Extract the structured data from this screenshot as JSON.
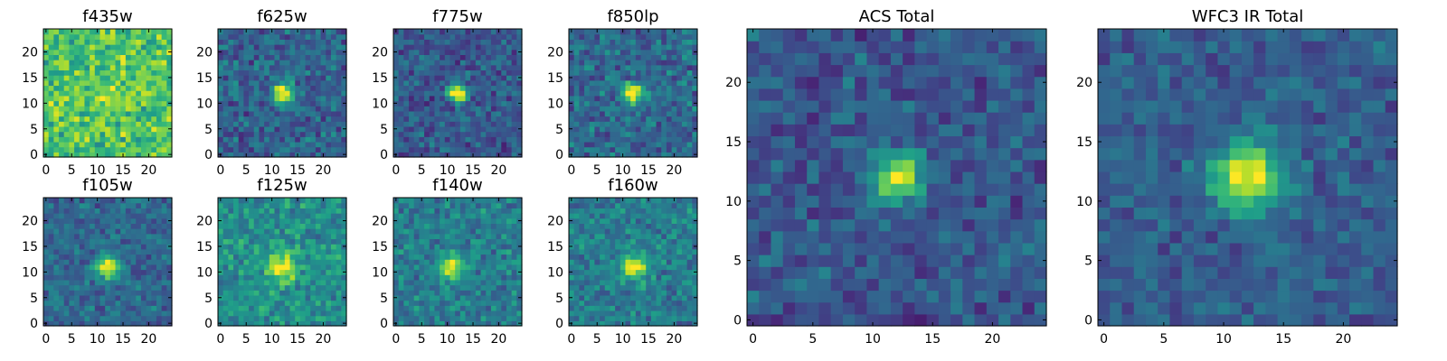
{
  "figure": {
    "colormap": "viridis",
    "colormap_stops": [
      "#440154",
      "#482878",
      "#3e4989",
      "#31688e",
      "#26828e",
      "#1f9e89",
      "#35b779",
      "#6ece58",
      "#b5de2b",
      "#fde725"
    ]
  },
  "chart_data": [
    {
      "type": "heatmap",
      "title": "f435w",
      "grid_size": 25,
      "background_level": 0.72,
      "noise": 0.17,
      "source_center": [
        12,
        11
      ],
      "source_amplitude": 0.15,
      "source_width": 1.5,
      "seed": 11,
      "xticks": [
        0,
        5,
        10,
        15,
        20
      ],
      "yticks": [
        0,
        5,
        10,
        15,
        20
      ],
      "xlim": [
        0,
        24
      ],
      "ylim": [
        0,
        24
      ]
    },
    {
      "type": "heatmap",
      "title": "f625w",
      "grid_size": 25,
      "background_level": 0.32,
      "noise": 0.14,
      "source_center": [
        12,
        12
      ],
      "source_amplitude": 0.75,
      "source_width": 1.3,
      "seed": 23,
      "xticks": [
        0,
        5,
        10,
        15,
        20
      ],
      "yticks": [
        0,
        5,
        10,
        15,
        20
      ],
      "xlim": [
        0,
        24
      ],
      "ylim": [
        0,
        24
      ]
    },
    {
      "type": "heatmap",
      "title": "f775w",
      "grid_size": 25,
      "background_level": 0.28,
      "noise": 0.13,
      "source_center": [
        12,
        12
      ],
      "source_amplitude": 0.78,
      "source_width": 1.3,
      "seed": 37,
      "xticks": [
        0,
        5,
        10,
        15,
        20
      ],
      "yticks": [
        0,
        5,
        10,
        15,
        20
      ],
      "xlim": [
        0,
        24
      ],
      "ylim": [
        0,
        24
      ]
    },
    {
      "type": "heatmap",
      "title": "f850lp",
      "grid_size": 25,
      "background_level": 0.34,
      "noise": 0.14,
      "source_center": [
        12,
        12
      ],
      "source_amplitude": 0.72,
      "source_width": 1.3,
      "seed": 41,
      "xticks": [
        0,
        5,
        10,
        15,
        20
      ],
      "yticks": [
        0,
        5,
        10,
        15,
        20
      ],
      "xlim": [
        0,
        24
      ],
      "ylim": [
        0,
        24
      ]
    },
    {
      "type": "heatmap",
      "title": "f105w",
      "grid_size": 25,
      "background_level": 0.34,
      "noise": 0.12,
      "source_center": [
        12,
        11
      ],
      "source_amplitude": 0.72,
      "source_width": 1.5,
      "seed": 53,
      "xticks": [
        0,
        5,
        10,
        15,
        20
      ],
      "yticks": [
        0,
        5,
        10,
        15,
        20
      ],
      "xlim": [
        0,
        24
      ],
      "ylim": [
        0,
        24
      ]
    },
    {
      "type": "heatmap",
      "title": "f125w",
      "grid_size": 25,
      "background_level": 0.5,
      "noise": 0.13,
      "source_center": [
        12,
        11
      ],
      "source_amplitude": 0.5,
      "source_width": 2.0,
      "seed": 67,
      "xticks": [
        0,
        5,
        10,
        15,
        20
      ],
      "yticks": [
        0,
        5,
        10,
        15,
        20
      ],
      "xlim": [
        0,
        24
      ],
      "ylim": [
        0,
        24
      ]
    },
    {
      "type": "heatmap",
      "title": "f140w",
      "grid_size": 25,
      "background_level": 0.42,
      "noise": 0.13,
      "source_center": [
        11,
        11
      ],
      "source_amplitude": 0.58,
      "source_width": 1.6,
      "seed": 79,
      "xticks": [
        0,
        5,
        10,
        15,
        20
      ],
      "yticks": [
        0,
        5,
        10,
        15,
        20
      ],
      "xlim": [
        0,
        24
      ],
      "ylim": [
        0,
        24
      ]
    },
    {
      "type": "heatmap",
      "title": "f160w",
      "grid_size": 25,
      "background_level": 0.42,
      "noise": 0.13,
      "source_center": [
        12,
        11
      ],
      "source_amplitude": 0.58,
      "source_width": 1.7,
      "seed": 83,
      "xticks": [
        0,
        5,
        10,
        15,
        20
      ],
      "yticks": [
        0,
        5,
        10,
        15,
        20
      ],
      "xlim": [
        0,
        24
      ],
      "ylim": [
        0,
        24
      ]
    },
    {
      "type": "heatmap",
      "title": "ACS Total",
      "grid_size": 25,
      "background_level": 0.27,
      "noise": 0.12,
      "source_center": [
        12,
        12
      ],
      "source_amplitude": 0.72,
      "source_width": 1.4,
      "seed": 97,
      "xticks": [
        0,
        5,
        10,
        15,
        20
      ],
      "yticks": [
        0,
        5,
        10,
        15,
        20
      ],
      "xlim": [
        0,
        24
      ],
      "ylim": [
        0,
        24
      ]
    },
    {
      "type": "heatmap",
      "title": "WFC3 IR Total",
      "grid_size": 25,
      "background_level": 0.3,
      "noise": 0.1,
      "source_center": [
        12,
        12
      ],
      "source_amplitude": 0.7,
      "source_width": 2.0,
      "seed": 101,
      "xticks": [
        0,
        5,
        10,
        15,
        20
      ],
      "yticks": [
        0,
        5,
        10,
        15,
        20
      ],
      "xlim": [
        0,
        24
      ],
      "ylim": [
        0,
        24
      ]
    }
  ]
}
